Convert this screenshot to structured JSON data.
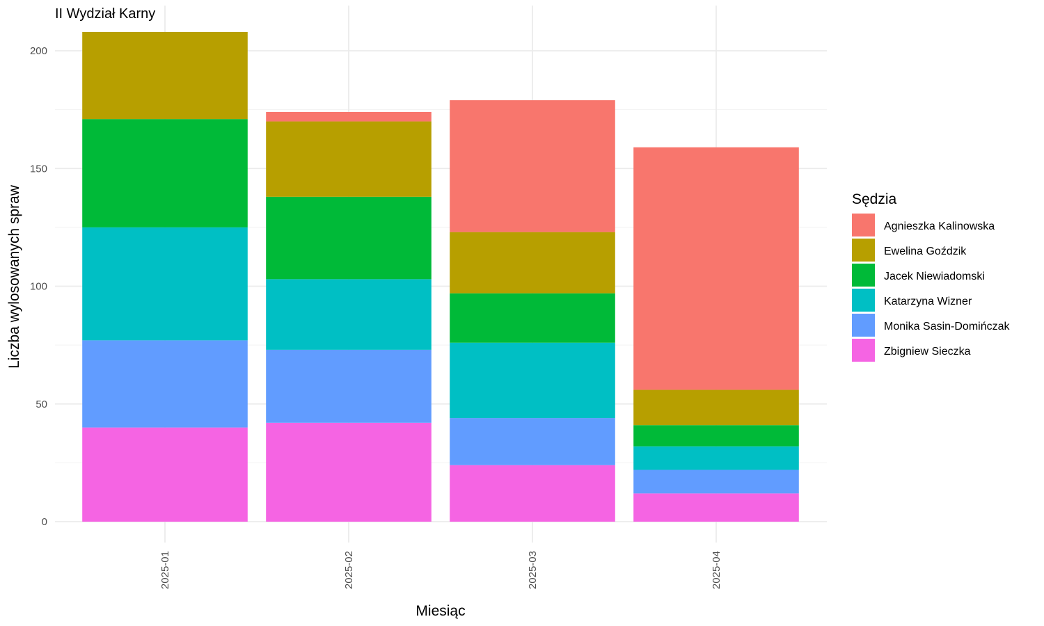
{
  "chart_data": {
    "type": "bar",
    "stacked": true,
    "title": "II Wydział Karny",
    "xlabel": "Miesiąc",
    "ylabel": "Liczba wylosowanych spraw",
    "categories": [
      "2025-01",
      "2025-02",
      "2025-03",
      "2025-04"
    ],
    "ylim": [
      0,
      210
    ],
    "yticks": [
      0,
      50,
      100,
      150,
      200
    ],
    "grid": true,
    "legend": {
      "title": "Sędzia",
      "placement": "right"
    },
    "series": [
      {
        "name": "Zbigniew Sieczka",
        "color": "#F564E3",
        "values": [
          40,
          42,
          24,
          12
        ]
      },
      {
        "name": "Monika Sasin-Domińczak",
        "color": "#619CFF",
        "values": [
          37,
          31,
          20,
          10
        ]
      },
      {
        "name": "Katarzyna Wizner",
        "color": "#00BFC4",
        "values": [
          48,
          30,
          32,
          10
        ]
      },
      {
        "name": "Jacek Niewiadomski",
        "color": "#00BA38",
        "values": [
          46,
          35,
          21,
          9
        ]
      },
      {
        "name": "Ewelina Goździk",
        "color": "#B79F00",
        "values": [
          37,
          32,
          26,
          15
        ]
      },
      {
        "name": "Agnieszka Kalinowska",
        "color": "#F8766D",
        "values": [
          0,
          4,
          56,
          103
        ]
      }
    ],
    "legend_order": [
      "Agnieszka Kalinowska",
      "Ewelina Goździk",
      "Jacek Niewiadomski",
      "Katarzyna Wizner",
      "Monika Sasin-Domińczak",
      "Zbigniew Sieczka"
    ]
  }
}
